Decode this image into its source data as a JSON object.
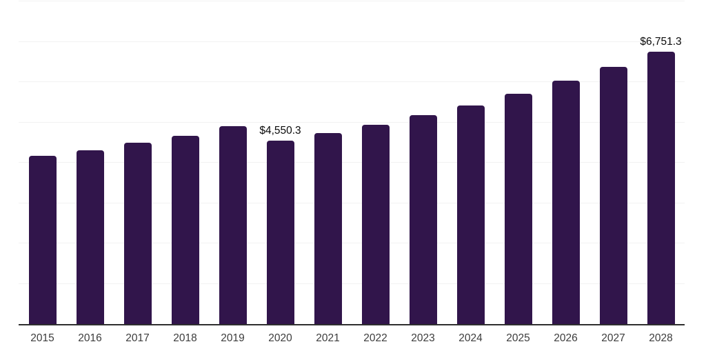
{
  "chart_data": {
    "type": "bar",
    "title": "",
    "xlabel": "",
    "ylabel": "",
    "categories": [
      "2015",
      "2016",
      "2017",
      "2018",
      "2019",
      "2020",
      "2021",
      "2022",
      "2023",
      "2024",
      "2025",
      "2026",
      "2027",
      "2028"
    ],
    "values": [
      4170,
      4310,
      4490,
      4665,
      4900,
      4550.3,
      4735,
      4940,
      5180,
      5420,
      5710,
      6035,
      6375,
      6751.3
    ],
    "point_labels": [
      "",
      "",
      "",
      "",
      "",
      "$4,550.3",
      "",
      "",
      "",
      "",
      "",
      "",
      "",
      "$6,751.3"
    ],
    "ylim": [
      0,
      8000
    ],
    "gridline_step": 1000,
    "grid": "horizontal",
    "legend_position": "none",
    "bar_color": "#31154B",
    "gridline_color": "#f2f2f2",
    "axis_line_color": "#2e2e2e",
    "point_label_color": "#0a0a0a",
    "tick_label_color": "#3c3c3c",
    "background_color": "#ffffff"
  }
}
